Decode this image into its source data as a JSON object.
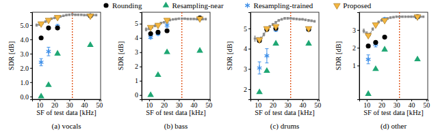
{
  "chart_data": [
    {
      "type": "scatter",
      "title": "(a) vocals",
      "xlabel": "SF of test data [kHz]",
      "ylabel": "SDR [dB]",
      "xlim": [
        5,
        51
      ],
      "xticks": [
        10,
        20,
        30,
        40,
        50
      ],
      "ylim": [
        -0.2,
        5.9
      ],
      "yticks": [
        {
          "value": 0,
          "label": "0.0"
        },
        {
          "value": 1,
          "label": "1.0"
        },
        {
          "value": 2,
          "label": "2.0"
        },
        {
          "value": 3,
          "label": "3.0"
        },
        {
          "value": 4,
          "label": "4.0"
        },
        {
          "value": 5,
          "label": "5.0"
        }
      ],
      "reference_lines": [
        {
          "x": 32,
          "color": "#e0561b",
          "line_style": "dotted"
        }
      ],
      "series": [
        {
          "color": "#8c8c8c",
          "marker": "square",
          "line_style": "dashed",
          "x": [
            8,
            10,
            12,
            14,
            16,
            18,
            20,
            22,
            24,
            26,
            28,
            30,
            32,
            34,
            36,
            38,
            40,
            42,
            44,
            46,
            48
          ],
          "values": [
            5.0,
            5.05,
            5.15,
            5.25,
            5.35,
            5.45,
            5.5,
            5.55,
            5.6,
            5.65,
            5.7,
            5.72,
            5.75,
            5.72,
            5.72,
            5.72,
            5.7,
            5.7,
            5.7,
            5.7,
            5.7
          ],
          "error": [
            0.08,
            0.08,
            0.06,
            0.06,
            0.05,
            0.05,
            0.05,
            0.05,
            0.04,
            0.04,
            0.04,
            0.04,
            0.04,
            0.04,
            0.04,
            0.04,
            0.04,
            0.04,
            0.04,
            0.04,
            0.04
          ]
        },
        {
          "name": "Resampling-near",
          "color": "#1fa774",
          "marker": "triangle-up",
          "x": [
            11.025,
            16,
            22.05,
            44.1
          ],
          "values": [
            0.0,
            0.8,
            3.0,
            3.6
          ]
        },
        {
          "name": "Resampling-trained",
          "color": "#3c8ee8",
          "marker": "asterisk",
          "x": [
            11.025,
            16,
            22.05,
            44.1
          ],
          "values": [
            2.4,
            3.15,
            4.9,
            5.65
          ],
          "error": [
            0.25,
            0.3,
            0.15,
            0.05
          ]
        },
        {
          "name": "Rounding",
          "color": "#000000",
          "marker": "circle",
          "x": [
            11.025,
            16,
            22.05,
            44.1
          ],
          "values": [
            4.1,
            4.8,
            4.8,
            5.65
          ]
        },
        {
          "name": "Proposed",
          "color": "#f4b63f",
          "marker": "triangle-down",
          "x": [
            11.025,
            16,
            22.05,
            44.1
          ],
          "values": [
            5.1,
            5.35,
            5.55,
            5.65
          ]
        }
      ]
    },
    {
      "type": "scatter",
      "title": "(b) bass",
      "xlabel": "SF of test data [kHz]",
      "ylabel": "SDR [dB]",
      "xlim": [
        5,
        51
      ],
      "xticks": [
        10,
        20,
        30,
        40,
        50
      ],
      "ylim": [
        -0.3,
        5.8
      ],
      "yticks": [
        0,
        1,
        2,
        3,
        4,
        5
      ],
      "reference_lines": [
        {
          "x": 32,
          "color": "#e0561b",
          "line_style": "dotted"
        }
      ],
      "series": [
        {
          "color": "#8c8c8c",
          "marker": "square",
          "line_style": "dashed",
          "x": [
            8,
            10,
            12,
            14,
            16,
            18,
            20,
            22,
            24,
            26,
            28,
            30,
            32,
            34,
            36,
            38,
            40,
            42,
            44,
            46,
            48
          ],
          "values": [
            4.6,
            4.65,
            4.75,
            4.85,
            4.95,
            5.05,
            5.1,
            5.2,
            5.25,
            5.3,
            5.32,
            5.35,
            5.35,
            5.35,
            5.33,
            5.33,
            5.33,
            5.32,
            5.32,
            5.32,
            5.32
          ],
          "error": [
            0.1,
            0.08,
            0.06,
            0.06,
            0.05,
            0.05,
            0.05,
            0.05,
            0.04,
            0.04,
            0.04,
            0.04,
            0.04,
            0.04,
            0.04,
            0.04,
            0.04,
            0.04,
            0.04,
            0.04,
            0.04
          ]
        },
        {
          "color": "#1fa774",
          "marker": "triangle-up",
          "x": [
            11.025,
            16,
            22.05,
            44.1
          ],
          "values": [
            0.0,
            1.4,
            3.0,
            3.1
          ]
        },
        {
          "color": "#3c8ee8",
          "marker": "asterisk",
          "x": [
            11.025,
            16,
            22.05,
            44.1
          ],
          "values": [
            4.05,
            4.3,
            4.9,
            5.35
          ],
          "error": [
            0.1,
            0.1,
            0.15,
            0.05
          ]
        },
        {
          "color": "#000000",
          "marker": "circle",
          "x": [
            11.025,
            16,
            22.05,
            44.1
          ],
          "values": [
            4.3,
            4.4,
            4.5,
            5.4
          ]
        },
        {
          "color": "#f4b63f",
          "marker": "triangle-down",
          "x": [
            11.025,
            16,
            22.05,
            44.1
          ],
          "values": [
            4.75,
            4.9,
            5.25,
            5.35
          ]
        }
      ]
    },
    {
      "type": "scatter",
      "title": "(c) drums",
      "xlabel": "SF of test data [kHz]",
      "ylabel": "SDR [dB]",
      "xlim": [
        5,
        51
      ],
      "xticks": [
        10,
        20,
        30,
        40,
        50
      ],
      "ylim": [
        1.5,
        5.8
      ],
      "yticks": [
        2,
        3,
        4,
        5
      ],
      "reference_lines": [
        {
          "x": 32,
          "color": "#e0561b",
          "line_style": "dotted"
        }
      ],
      "series": [
        {
          "color": "#8c8c8c",
          "marker": "square",
          "line_style": "dashed",
          "x": [
            8,
            10,
            12,
            14,
            16,
            18,
            20,
            22,
            24,
            26,
            28,
            30,
            32,
            34,
            36,
            38,
            40,
            42,
            44,
            46,
            48
          ],
          "values": [
            4.5,
            4.45,
            4.5,
            4.7,
            4.95,
            5.1,
            5.2,
            5.3,
            5.4,
            5.45,
            5.5,
            5.5,
            5.5,
            5.48,
            5.47,
            5.45,
            5.45,
            5.42,
            5.4,
            5.38,
            5.35
          ],
          "error": [
            0.12,
            0.1,
            0.08,
            0.07,
            0.06,
            0.05,
            0.05,
            0.05,
            0.04,
            0.04,
            0.04,
            0.04,
            0.04,
            0.04,
            0.04,
            0.04,
            0.04,
            0.04,
            0.04,
            0.04,
            0.04
          ]
        },
        {
          "color": "#1fa774",
          "marker": "triangle-up",
          "x": [
            11.025,
            16,
            22.05,
            44.1
          ],
          "values": [
            1.85,
            2.9,
            4.25,
            4.25
          ]
        },
        {
          "color": "#3c8ee8",
          "marker": "asterisk",
          "x": [
            11.025,
            16,
            22.05,
            44.1
          ],
          "values": [
            3.05,
            3.65,
            4.95,
            4.95
          ],
          "error": [
            0.3,
            0.35,
            0.1,
            0.05
          ]
        },
        {
          "color": "#000000",
          "marker": "circle",
          "x": [
            11.025,
            16,
            22.05,
            44.1
          ],
          "values": [
            4.4,
            4.95,
            5.0,
            4.95
          ]
        },
        {
          "color": "#f4b63f",
          "marker": "triangle-down",
          "x": [
            11.025,
            16,
            22.05,
            44.1
          ],
          "values": [
            4.45,
            5.0,
            5.1,
            5.0
          ]
        }
      ]
    },
    {
      "type": "scatter",
      "title": "(d) other",
      "xlabel": "SF of test data [kHz]",
      "ylabel": "SDR [dB]",
      "xlim": [
        5,
        51
      ],
      "xticks": [
        10,
        20,
        30,
        40,
        50
      ],
      "ylim": [
        -0.9,
        4.0
      ],
      "yticks": [
        1,
        2,
        3
      ],
      "reference_lines": [
        {
          "x": 32,
          "color": "#e0561b",
          "line_style": "dotted"
        }
      ],
      "series": [
        {
          "color": "#8c8c8c",
          "marker": "square",
          "line_style": "dashed",
          "x": [
            8,
            10,
            12,
            14,
            16,
            18,
            20,
            22,
            24,
            26,
            28,
            30,
            32,
            34,
            36,
            38,
            40,
            42,
            44,
            46,
            48
          ],
          "values": [
            2.95,
            2.8,
            2.75,
            3.05,
            3.3,
            3.45,
            3.55,
            3.6,
            3.65,
            3.7,
            3.72,
            3.75,
            3.75,
            3.75,
            3.75,
            3.75,
            3.75,
            3.75,
            3.75,
            3.75,
            3.75
          ],
          "error": [
            0.1,
            0.1,
            0.08,
            0.07,
            0.06,
            0.05,
            0.05,
            0.05,
            0.04,
            0.04,
            0.04,
            0.04,
            0.04,
            0.04,
            0.04,
            0.04,
            0.04,
            0.04,
            0.04,
            0.04,
            0.04
          ]
        },
        {
          "color": "#1fa774",
          "marker": "triangle-up",
          "x": [
            11.025,
            16,
            22.05,
            44.1
          ],
          "values": [
            -0.6,
            0.8,
            1.9,
            1.35
          ]
        },
        {
          "color": "#3c8ee8",
          "marker": "asterisk",
          "x": [
            11.025,
            16,
            22.05,
            44.1
          ],
          "values": [
            1.35,
            2.2,
            3.6,
            3.7
          ],
          "error": [
            0.25,
            0.15,
            0.1,
            0.05
          ]
        },
        {
          "color": "#000000",
          "marker": "circle",
          "x": [
            11.025,
            16,
            22.05,
            44.1
          ],
          "values": [
            2.1,
            2.3,
            2.6,
            3.75
          ]
        },
        {
          "color": "#f4b63f",
          "marker": "triangle-down",
          "x": [
            11.025,
            16,
            22.05,
            44.1
          ],
          "values": [
            2.7,
            3.3,
            3.55,
            3.75
          ]
        }
      ]
    }
  ]
}
